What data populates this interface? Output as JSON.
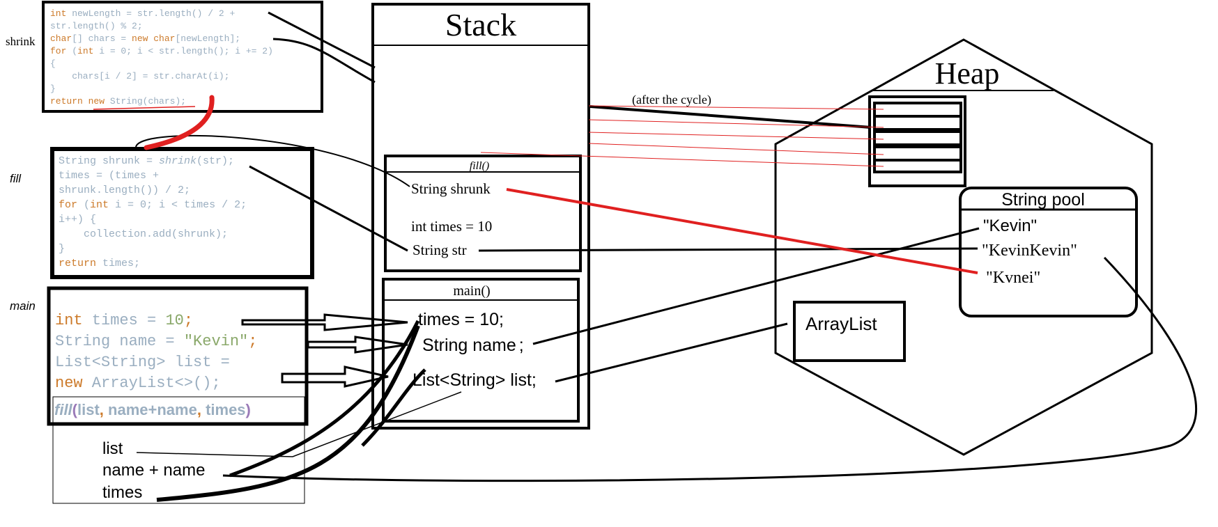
{
  "colors": {
    "keyword": "#cc7a2a",
    "plain": "#9aaec0",
    "string": "#8aa86a",
    "number": "#8aa86a",
    "method": "#9a7ab8",
    "red_line": "#e02020",
    "black": "#000000"
  },
  "side_labels": {
    "shrink": "shrink",
    "fill": "fill",
    "main": "main"
  },
  "code_shrink": {
    "l1_kw": "int",
    "l1_rest": " newLength = str.length() / 2 +",
    "l2": "str.length() % 2;",
    "l3_kw": "char",
    "l3_a": "[] chars = ",
    "l3_kw2": "new char",
    "l3_b": "[newLength];",
    "l4_kw": "for",
    "l4_a": " (",
    "l4_kw2": "int",
    "l4_b": " i = 0; i < str.length(); i += 2)",
    "l5": "{",
    "l6": "    chars[i / 2] = str.charAt(i);",
    "l7": "}",
    "l8_kw": "return",
    "l8_sp": " ",
    "l8_kw2": "new",
    "l8_b": " String(chars);"
  },
  "code_fill": {
    "l1_a": "String shrunk = ",
    "l1_m": "shrink",
    "l1_b": "(str);",
    "l2": "times = (times +",
    "l3": "shrunk.length()) / 2;",
    "l4_kw": "for",
    "l4_a": " (",
    "l4_kw2": "int",
    "l4_b": " i = 0; i < times / 2;",
    "l5": "i++) {",
    "l6": "    collection.add(shrunk);",
    "l7": "}",
    "l8_kw": "return",
    "l8_b": " times;"
  },
  "code_main": {
    "l1_kw": "int",
    "l1_a": " times = ",
    "l1_num": "10",
    "l1_b": ";",
    "l2_a": "String name = ",
    "l2_str": "\"Kevin\"",
    "l2_b": ";",
    "l3": "List<String> list =",
    "l4_kw": "new",
    "l4_b": " ArrayList<>();",
    "call_m": "fill",
    "call_p1": "(",
    "call_a1": "list",
    "call_c1": ", ",
    "call_a2": "name+name",
    "call_c2": ", ",
    "call_a3": "times",
    "call_p2": ")"
  },
  "args": [
    "list",
    "name + name",
    "times"
  ],
  "stack": {
    "title": "Stack",
    "fill_frame": {
      "title": "fill()",
      "vars": [
        "String shrunk",
        "int times = 10",
        "String str"
      ]
    },
    "main_frame": {
      "title": "main()",
      "vars": [
        "times = 10;",
        "String name",
        "List<String> list;"
      ],
      "name_suffix": ";"
    }
  },
  "heap": {
    "title": "Heap",
    "after_cycle": "(after the cycle)",
    "string_pool": {
      "title": "String pool",
      "entries": [
        "\"Kevin\"",
        "\"KevinKevin\"",
        "\"Kvnei\""
      ]
    },
    "arraylist": "ArrayList"
  }
}
